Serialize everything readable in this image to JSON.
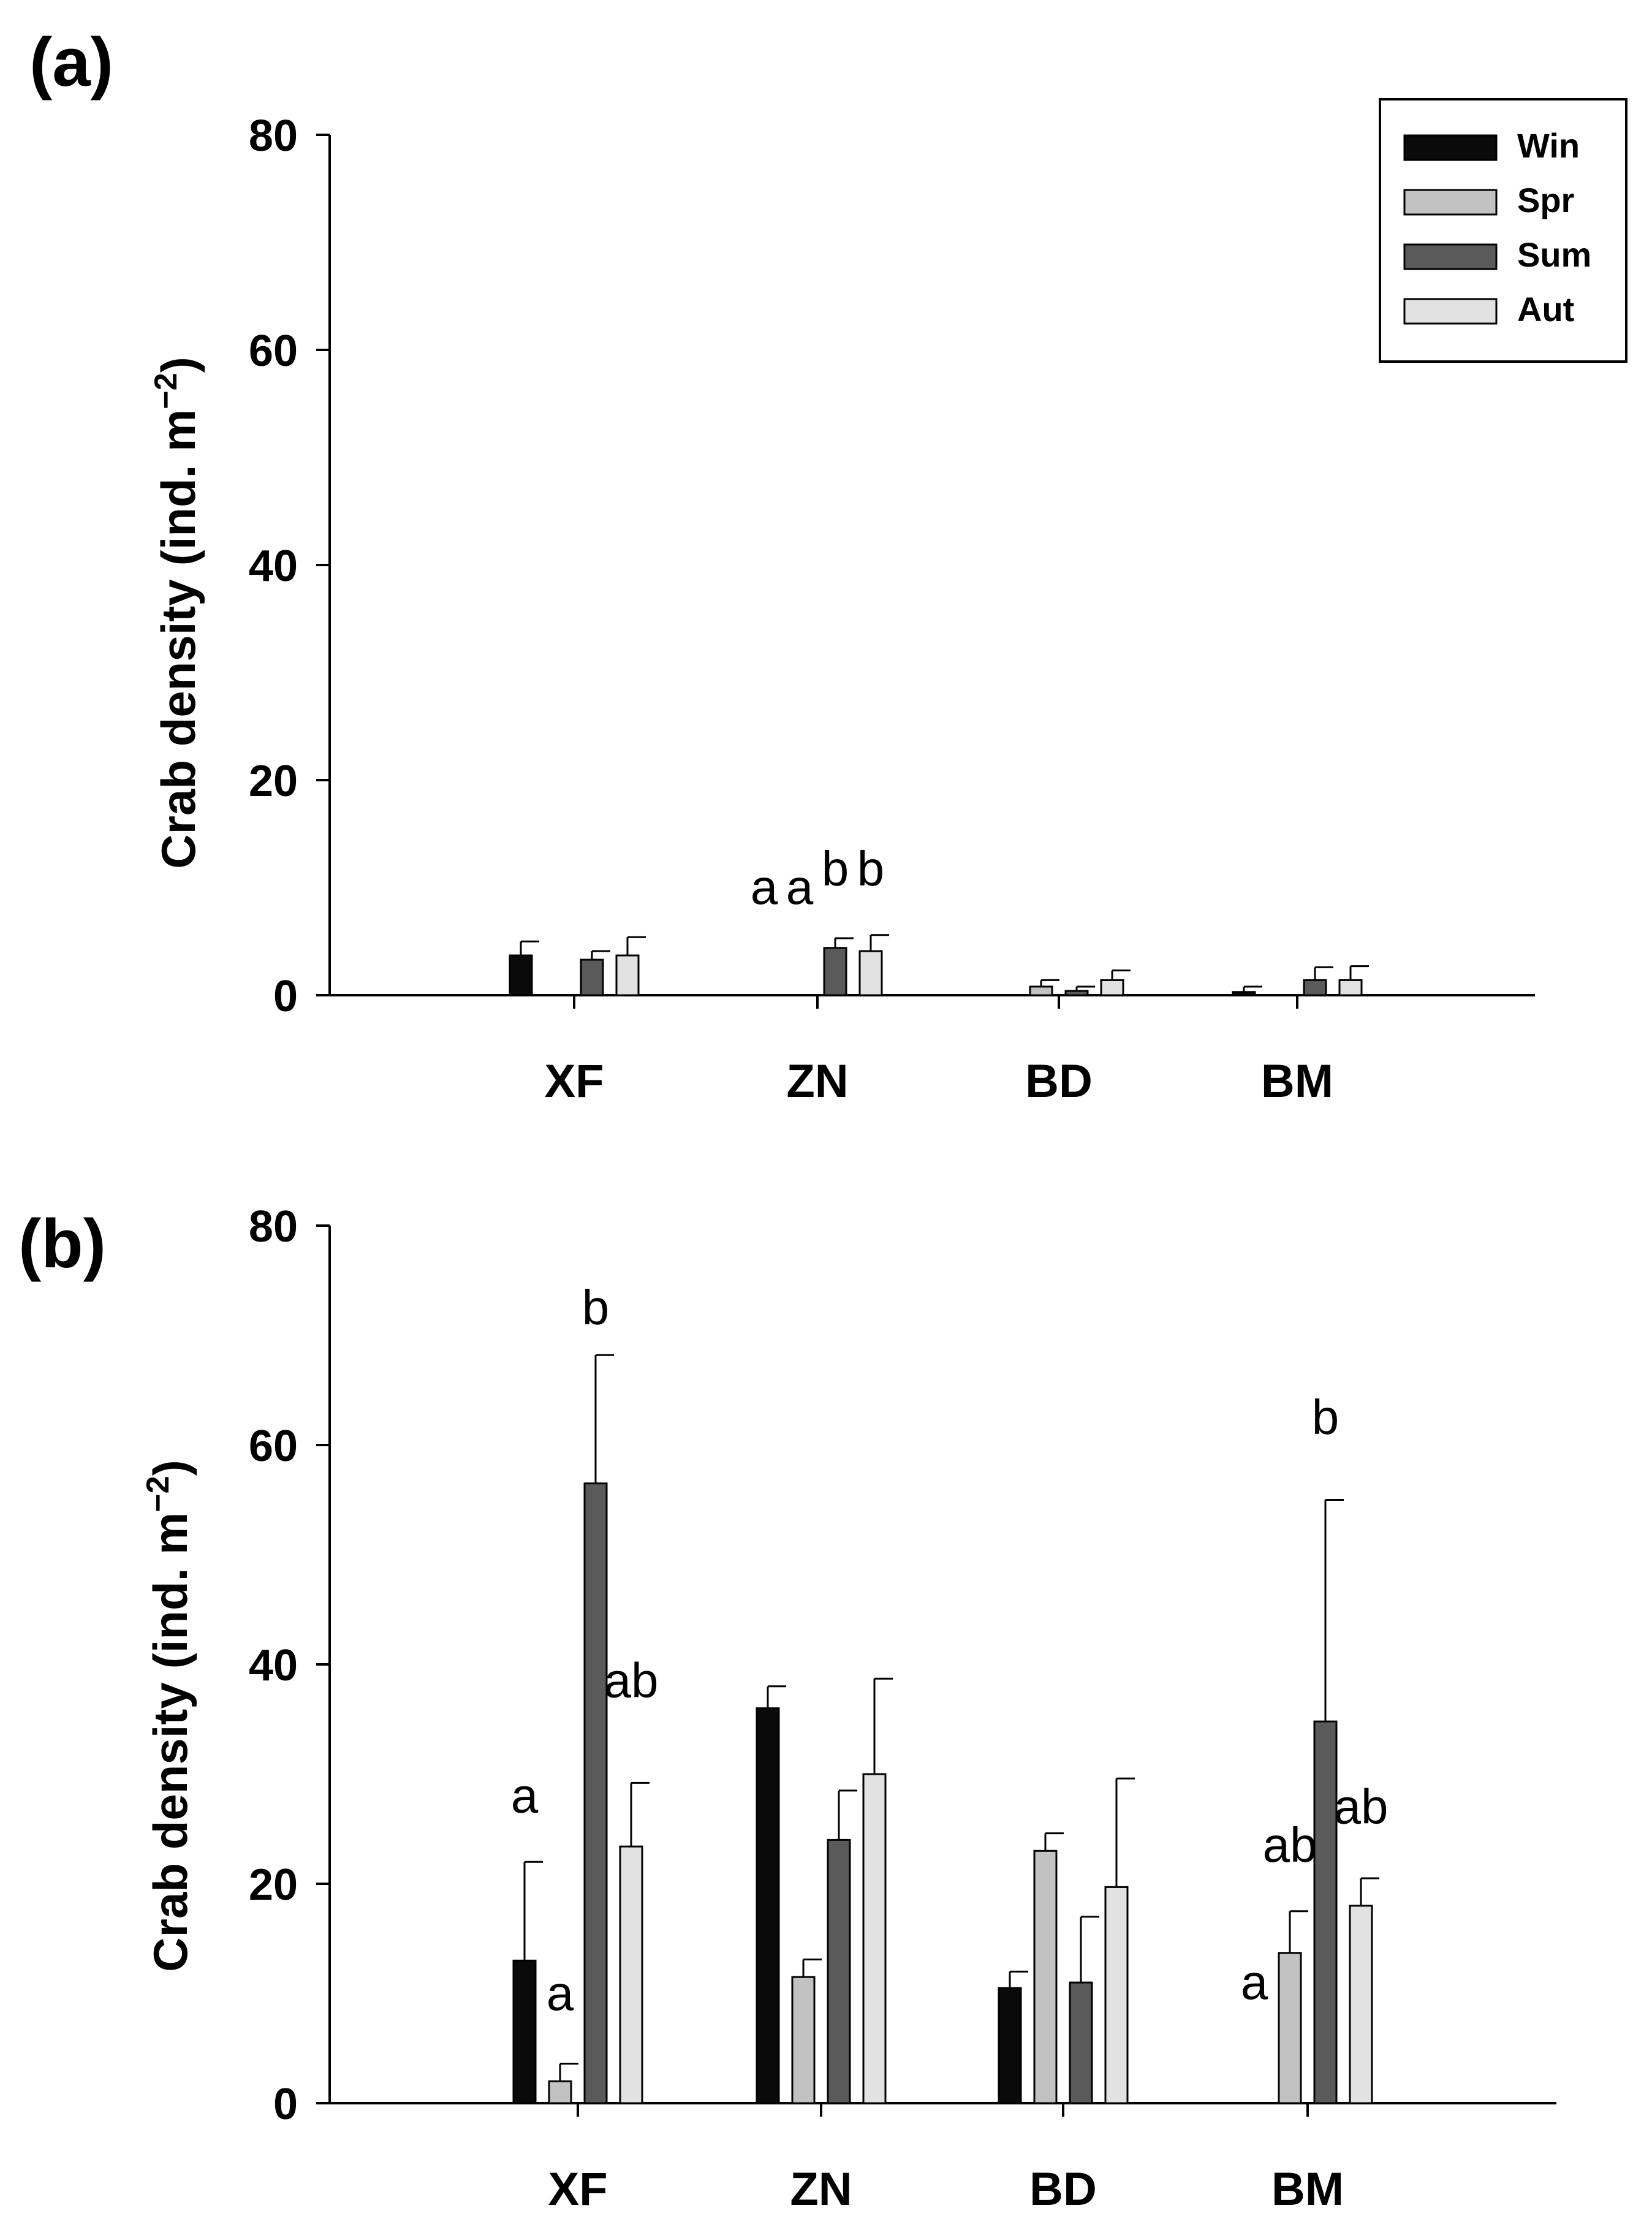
{
  "colors": {
    "Win": "#0a0a0a",
    "Spr": "#c2c2c2",
    "Sum": "#5a5a5a",
    "Aut": "#e2e2e2",
    "axis": "#000000"
  },
  "legend": {
    "items": [
      {
        "key": "Win",
        "label": "Win"
      },
      {
        "key": "Spr",
        "label": "Spr"
      },
      {
        "key": "Sum",
        "label": "Sum"
      },
      {
        "key": "Aut",
        "label": "Aut"
      }
    ]
  },
  "chart_data": [
    {
      "panel_label": "(a)",
      "type": "bar",
      "ylabel_main": "Crab density",
      "ylabel_unit": "(ind. m",
      "ylabel_sup": "−2",
      "ylabel_close": ")",
      "ylim": [
        0,
        80
      ],
      "yticks": [
        "0",
        "20",
        "40",
        "60",
        "80"
      ],
      "categories": [
        "XF",
        "ZN",
        "BD",
        "BM"
      ],
      "legend_position": "top-right",
      "series": [
        {
          "name": "Win",
          "values": [
            3.7,
            0,
            0,
            0.3
          ],
          "errors": [
            1.3,
            0,
            0,
            0.5
          ]
        },
        {
          "name": "Spr",
          "values": [
            0,
            0,
            0.8,
            0
          ],
          "errors": [
            0,
            0,
            0.6,
            0
          ]
        },
        {
          "name": "Sum",
          "values": [
            3.3,
            4.4,
            0.4,
            1.4
          ],
          "errors": [
            0.8,
            0.9,
            0.4,
            1.2
          ]
        },
        {
          "name": "Aut",
          "values": [
            3.7,
            4.1,
            1.4,
            1.4
          ],
          "errors": [
            1.7,
            1.5,
            0.9,
            1.3
          ]
        }
      ],
      "letters": [
        {
          "category": "ZN",
          "series": "Win",
          "text": "a",
          "value": 8.5
        },
        {
          "category": "ZN",
          "series": "Spr",
          "text": "a",
          "value": 8.5
        },
        {
          "category": "ZN",
          "series": "Sum",
          "text": "b",
          "value": 10.2
        },
        {
          "category": "ZN",
          "series": "Aut",
          "text": "b",
          "value": 10.2
        }
      ]
    },
    {
      "panel_label": "(b)",
      "type": "bar",
      "ylabel_main": "Crab density",
      "ylabel_unit": "(ind. m",
      "ylabel_sup": "−2",
      "ylabel_close": ")",
      "ylim": [
        0,
        80
      ],
      "yticks": [
        "0",
        "20",
        "40",
        "60",
        "80"
      ],
      "categories": [
        "XF",
        "ZN",
        "BD",
        "BM"
      ],
      "series": [
        {
          "name": "Win",
          "values": [
            13,
            36,
            10.5,
            0
          ],
          "errors": [
            9,
            2,
            1.5,
            0
          ]
        },
        {
          "name": "Spr",
          "values": [
            2,
            11.5,
            23,
            13.7
          ],
          "errors": [
            1.6,
            1.6,
            1.6,
            3.8
          ]
        },
        {
          "name": "Sum",
          "values": [
            56.5,
            24,
            11,
            34.8
          ],
          "errors": [
            11.7,
            4.5,
            6,
            20.2
          ]
        },
        {
          "name": "Aut",
          "values": [
            23.4,
            30,
            19.7,
            18
          ],
          "errors": [
            5.8,
            8.7,
            9.9,
            2.5
          ]
        }
      ],
      "letters": [
        {
          "category": "XF",
          "series": "Win",
          "text": "a",
          "value": 26.5
        },
        {
          "category": "XF",
          "series": "Spr",
          "text": "a",
          "value": 8.5
        },
        {
          "category": "XF",
          "series": "Sum",
          "text": "b",
          "value": 71
        },
        {
          "category": "XF",
          "series": "Aut",
          "text": "ab",
          "value": 37
        },
        {
          "category": "BM",
          "series": "Win",
          "text": "a",
          "value": 9.5
        },
        {
          "category": "BM",
          "series": "Spr",
          "text": "ab",
          "value": 22
        },
        {
          "category": "BM",
          "series": "Sum",
          "text": "b",
          "value": 61
        },
        {
          "category": "BM",
          "series": "Aut",
          "text": "ab",
          "value": 25.5
        }
      ]
    }
  ]
}
